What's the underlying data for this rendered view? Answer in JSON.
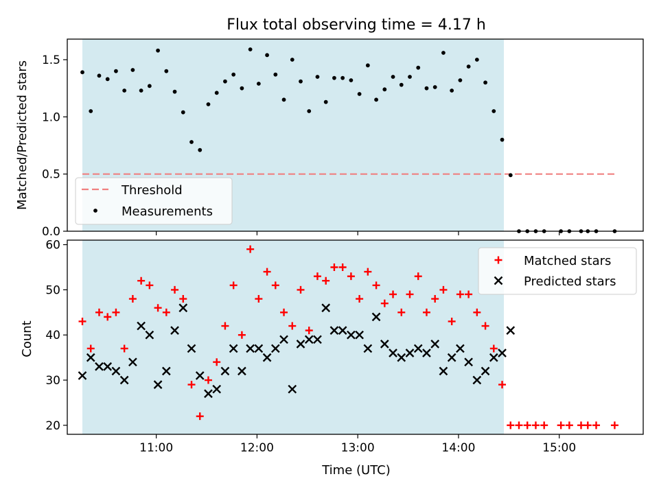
{
  "chart_data": [
    {
      "type": "scatter",
      "title": "Flux total observing time = 4.17 h",
      "xlabel": "",
      "ylabel": "Matched/Predicted stars",
      "ylim": [
        0,
        1.68
      ],
      "xlim": [
        "10:07",
        "15:50"
      ],
      "xticks": [
        "11:00",
        "12:00",
        "13:00",
        "14:00",
        "15:00"
      ],
      "yticks": [
        "0.0",
        "0.5",
        "1.0",
        "1.5"
      ],
      "observing_window": [
        "10:16",
        "14:27"
      ],
      "threshold": {
        "name": "Threshold",
        "y": 0.5,
        "x_range": [
          "10:16",
          "15:34"
        ],
        "color": "#f08080"
      },
      "series": [
        {
          "name": "Measurements",
          "color": "#000000",
          "points": [
            [
              "10:16",
              1.39
            ],
            [
              "10:21",
              1.05
            ],
            [
              "10:26",
              1.36
            ],
            [
              "10:31",
              1.33
            ],
            [
              "10:36",
              1.4
            ],
            [
              "10:41",
              1.23
            ],
            [
              "10:46",
              1.41
            ],
            [
              "10:51",
              1.23
            ],
            [
              "10:56",
              1.27
            ],
            [
              "11:01",
              1.58
            ],
            [
              "11:06",
              1.4
            ],
            [
              "11:11",
              1.22
            ],
            [
              "11:16",
              1.04
            ],
            [
              "11:21",
              0.78
            ],
            [
              "11:26",
              0.71
            ],
            [
              "11:31",
              1.11
            ],
            [
              "11:36",
              1.21
            ],
            [
              "11:41",
              1.31
            ],
            [
              "11:46",
              1.37
            ],
            [
              "11:51",
              1.25
            ],
            [
              "11:56",
              1.59
            ],
            [
              "12:01",
              1.29
            ],
            [
              "12:06",
              1.54
            ],
            [
              "12:11",
              1.37
            ],
            [
              "12:16",
              1.15
            ],
            [
              "12:21",
              1.5
            ],
            [
              "12:26",
              1.31
            ],
            [
              "12:31",
              1.05
            ],
            [
              "12:36",
              1.35
            ],
            [
              "12:41",
              1.13
            ],
            [
              "12:46",
              1.34
            ],
            [
              "12:51",
              1.34
            ],
            [
              "12:56",
              1.32
            ],
            [
              "13:01",
              1.2
            ],
            [
              "13:06",
              1.45
            ],
            [
              "13:11",
              1.15
            ],
            [
              "13:16",
              1.24
            ],
            [
              "13:21",
              1.35
            ],
            [
              "13:26",
              1.28
            ],
            [
              "13:31",
              1.35
            ],
            [
              "13:36",
              1.43
            ],
            [
              "13:41",
              1.25
            ],
            [
              "13:46",
              1.26
            ],
            [
              "13:51",
              1.56
            ],
            [
              "13:56",
              1.23
            ],
            [
              "14:01",
              1.32
            ],
            [
              "14:06",
              1.44
            ],
            [
              "14:11",
              1.5
            ],
            [
              "14:16",
              1.3
            ],
            [
              "14:21",
              1.05
            ],
            [
              "14:26",
              0.8
            ],
            [
              "14:31",
              0.49
            ],
            [
              "14:36",
              0.0
            ],
            [
              "14:41",
              0.0
            ],
            [
              "14:46",
              0.0
            ],
            [
              "14:51",
              0.0
            ],
            [
              "15:01",
              0.0
            ],
            [
              "15:06",
              0.0
            ],
            [
              "15:13",
              0.0
            ],
            [
              "15:17",
              0.0
            ],
            [
              "15:22",
              0.0
            ],
            [
              "15:33",
              0.0
            ]
          ]
        }
      ],
      "legend": "lower-left",
      "background": "#d4eaf0"
    },
    {
      "type": "scatter",
      "title": "",
      "xlabel": "Time (UTC)",
      "ylabel": "Count",
      "ylim": [
        18,
        61
      ],
      "xlim": [
        "10:07",
        "15:50"
      ],
      "xticks": [
        "11:00",
        "12:00",
        "13:00",
        "14:00",
        "15:00"
      ],
      "yticks": [
        "20",
        "30",
        "40",
        "50",
        "60"
      ],
      "observing_window": [
        "10:16",
        "14:27"
      ],
      "series": [
        {
          "name": "Matched stars",
          "marker": "+",
          "color": "#ff0000",
          "points": [
            [
              "10:16",
              43
            ],
            [
              "10:21",
              37
            ],
            [
              "10:26",
              45
            ],
            [
              "10:31",
              44
            ],
            [
              "10:36",
              45
            ],
            [
              "10:41",
              37
            ],
            [
              "10:46",
              48
            ],
            [
              "10:51",
              52
            ],
            [
              "10:56",
              51
            ],
            [
              "11:01",
              46
            ],
            [
              "11:06",
              45
            ],
            [
              "11:11",
              50
            ],
            [
              "11:16",
              48
            ],
            [
              "11:21",
              29
            ],
            [
              "11:26",
              22
            ],
            [
              "11:31",
              30
            ],
            [
              "11:36",
              34
            ],
            [
              "11:41",
              42
            ],
            [
              "11:46",
              51
            ],
            [
              "11:51",
              40
            ],
            [
              "11:56",
              59
            ],
            [
              "12:01",
              48
            ],
            [
              "12:06",
              54
            ],
            [
              "12:11",
              51
            ],
            [
              "12:16",
              45
            ],
            [
              "12:21",
              42
            ],
            [
              "12:26",
              50
            ],
            [
              "12:31",
              41
            ],
            [
              "12:36",
              53
            ],
            [
              "12:41",
              52
            ],
            [
              "12:46",
              55
            ],
            [
              "12:51",
              55
            ],
            [
              "12:56",
              53
            ],
            [
              "13:01",
              48
            ],
            [
              "13:06",
              54
            ],
            [
              "13:11",
              51
            ],
            [
              "13:16",
              47
            ],
            [
              "13:21",
              49
            ],
            [
              "13:26",
              45
            ],
            [
              "13:31",
              49
            ],
            [
              "13:36",
              53
            ],
            [
              "13:41",
              45
            ],
            [
              "13:46",
              48
            ],
            [
              "13:51",
              50
            ],
            [
              "13:56",
              43
            ],
            [
              "14:01",
              49
            ],
            [
              "14:06",
              49
            ],
            [
              "14:11",
              45
            ],
            [
              "14:16",
              42
            ],
            [
              "14:21",
              37
            ],
            [
              "14:26",
              29
            ],
            [
              "14:31",
              20
            ],
            [
              "14:36",
              20
            ],
            [
              "14:41",
              20
            ],
            [
              "14:46",
              20
            ],
            [
              "14:51",
              20
            ],
            [
              "15:01",
              20
            ],
            [
              "15:06",
              20
            ],
            [
              "15:13",
              20
            ],
            [
              "15:17",
              20
            ],
            [
              "15:22",
              20
            ],
            [
              "15:33",
              20
            ]
          ]
        },
        {
          "name": "Predicted stars",
          "marker": "x",
          "color": "#000000",
          "points": [
            [
              "10:16",
              31
            ],
            [
              "10:21",
              35
            ],
            [
              "10:26",
              33
            ],
            [
              "10:31",
              33
            ],
            [
              "10:36",
              32
            ],
            [
              "10:41",
              30
            ],
            [
              "10:46",
              34
            ],
            [
              "10:51",
              42
            ],
            [
              "10:56",
              40
            ],
            [
              "11:01",
              29
            ],
            [
              "11:06",
              32
            ],
            [
              "11:11",
              41
            ],
            [
              "11:16",
              46
            ],
            [
              "11:21",
              37
            ],
            [
              "11:26",
              31
            ],
            [
              "11:31",
              27
            ],
            [
              "11:36",
              28
            ],
            [
              "11:41",
              32
            ],
            [
              "11:46",
              37
            ],
            [
              "11:51",
              32
            ],
            [
              "11:56",
              37
            ],
            [
              "12:01",
              37
            ],
            [
              "12:06",
              35
            ],
            [
              "12:11",
              37
            ],
            [
              "12:16",
              39
            ],
            [
              "12:21",
              28
            ],
            [
              "12:26",
              38
            ],
            [
              "12:31",
              39
            ],
            [
              "12:36",
              39
            ],
            [
              "12:41",
              46
            ],
            [
              "12:46",
              41
            ],
            [
              "12:51",
              41
            ],
            [
              "12:56",
              40
            ],
            [
              "13:01",
              40
            ],
            [
              "13:06",
              37
            ],
            [
              "13:11",
              44
            ],
            [
              "13:16",
              38
            ],
            [
              "13:21",
              36
            ],
            [
              "13:26",
              35
            ],
            [
              "13:31",
              36
            ],
            [
              "13:36",
              37
            ],
            [
              "13:41",
              36
            ],
            [
              "13:46",
              38
            ],
            [
              "13:51",
              32
            ],
            [
              "13:56",
              35
            ],
            [
              "14:01",
              37
            ],
            [
              "14:06",
              34
            ],
            [
              "14:11",
              30
            ],
            [
              "14:16",
              32
            ],
            [
              "14:21",
              35
            ],
            [
              "14:26",
              36
            ],
            [
              "14:31",
              41
            ]
          ]
        }
      ],
      "legend": "top-right",
      "background": "#d4eaf0"
    }
  ]
}
